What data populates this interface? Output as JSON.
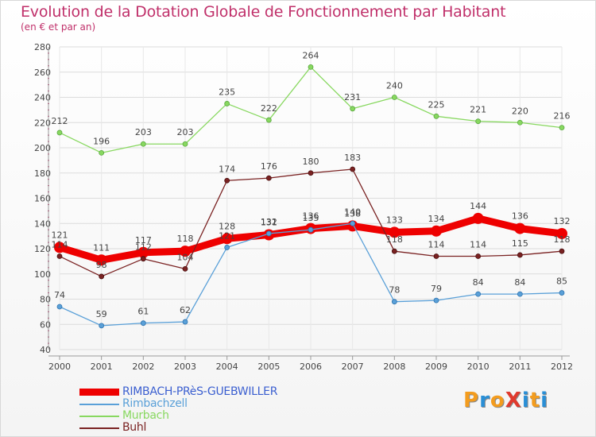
{
  "header": {
    "title": "Evolution de la Dotation Globale de Fonctionnement par Habitant",
    "subtitle": "(en € et par an)"
  },
  "logo": {
    "text": "ProXiti",
    "letters": [
      "P",
      "r",
      "o",
      "X",
      "i",
      "t",
      "i"
    ],
    "colors": [
      "#f39c1e",
      "#2a8fd6",
      "#f39c1e",
      "#e03a2e",
      "#2a8fd6",
      "#f39c1e",
      "#2a8fd6"
    ]
  },
  "chart_data": {
    "type": "line",
    "title": "Evolution de la Dotation Globale de Fonctionnement par Habitant",
    "subtitle": "(en € et par an)",
    "categories": [
      "2000",
      "2001",
      "2002",
      "2003",
      "2004",
      "2005",
      "2006",
      "2007",
      "2008",
      "2009",
      "2010",
      "2011",
      "2012"
    ],
    "y_ticks": [
      "40",
      "60",
      "80",
      "100",
      "120",
      "140",
      "160",
      "180",
      "200",
      "220",
      "240",
      "260",
      "280"
    ],
    "ylim": [
      40,
      280
    ],
    "grid": true,
    "legend_position": "bottom-left",
    "series": [
      {
        "name": "RIMBACH-PRèS-GUEBWILLER",
        "color": "#ee0000",
        "values": [
          121,
          111,
          117,
          118,
          128,
          131,
          136,
          138,
          133,
          134,
          144,
          136,
          132
        ],
        "labels": [
          "121",
          "111",
          "117",
          "118",
          "128",
          "131",
          "136",
          "138",
          "133",
          "134",
          "144",
          "136",
          "132"
        ]
      },
      {
        "name": "Rimbachzell",
        "color": "#5aa0d8",
        "values": [
          74,
          59,
          61,
          62,
          121,
          132,
          135,
          140,
          78,
          79,
          84,
          84,
          85
        ],
        "labels": [
          "74",
          "59",
          "61",
          "62",
          "121",
          "132",
          "135",
          "140",
          "78",
          "79",
          "84",
          "84",
          "85"
        ]
      },
      {
        "name": "Murbach",
        "color": "#88d860",
        "values": [
          212,
          196,
          203,
          203,
          235,
          222,
          264,
          231,
          240,
          225,
          221,
          220,
          216
        ],
        "labels": [
          "212",
          "196",
          "203",
          "203",
          "235",
          "222",
          "264",
          "231",
          "240",
          "225",
          "221",
          "220",
          "216"
        ]
      },
      {
        "name": "Buhl",
        "color": "#7a2222",
        "values": [
          114,
          98,
          112,
          104,
          174,
          176,
          180,
          183,
          118,
          114,
          114,
          115,
          118
        ],
        "labels": [
          "114",
          "98",
          "112",
          "104",
          "174",
          "176",
          "180",
          "183",
          "118",
          "114",
          "114",
          "115",
          "118"
        ]
      }
    ]
  }
}
